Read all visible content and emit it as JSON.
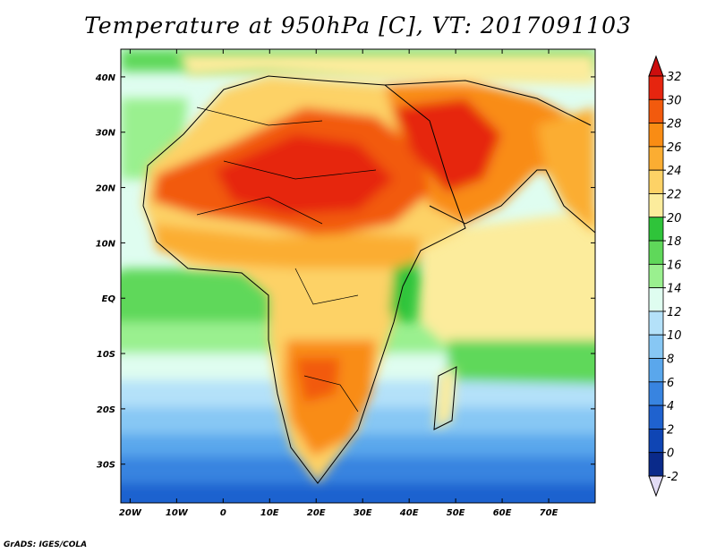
{
  "title": "Temperature at 950hPa [C], VT: 2017091103",
  "credit": "GrADS: IGES/COLA",
  "map": {
    "lon_range": [
      -22,
      80
    ],
    "lat_range": [
      -37,
      45
    ],
    "lat_labels": [
      "40N",
      "30N",
      "20N",
      "10N",
      "EQ",
      "10S",
      "20S",
      "30S"
    ],
    "lat_values": [
      40,
      30,
      20,
      10,
      0,
      -10,
      -20,
      -30
    ],
    "lon_labels": [
      "20W",
      "10W",
      "0",
      "10E",
      "20E",
      "30E",
      "40E",
      "50E",
      "60E",
      "70E"
    ],
    "lon_values": [
      -20,
      -10,
      0,
      10,
      20,
      30,
      40,
      50,
      60,
      70
    ],
    "ocean_color": "#cfeeff"
  },
  "colorbar": {
    "labels": [
      "32",
      "30",
      "28",
      "26",
      "24",
      "22",
      "20",
      "18",
      "16",
      "14",
      "12",
      "10",
      "8",
      "6",
      "4",
      "2",
      "0",
      "-2"
    ],
    "colors": [
      "#e6250f",
      "#f25a0d",
      "#f98c14",
      "#fbad32",
      "#fdd266",
      "#fcec9c",
      "#2fc43a",
      "#5fd85a",
      "#9af08f",
      "#dffdf0",
      "#b4e1f9",
      "#87c7f4",
      "#5aa7ec",
      "#3884e0",
      "#1f62cf",
      "#0f45b4",
      "#0a2a8a"
    ],
    "top_triangle_color": "#cc0e0e",
    "bottom_triangle_color": "#e2dcf5"
  }
}
